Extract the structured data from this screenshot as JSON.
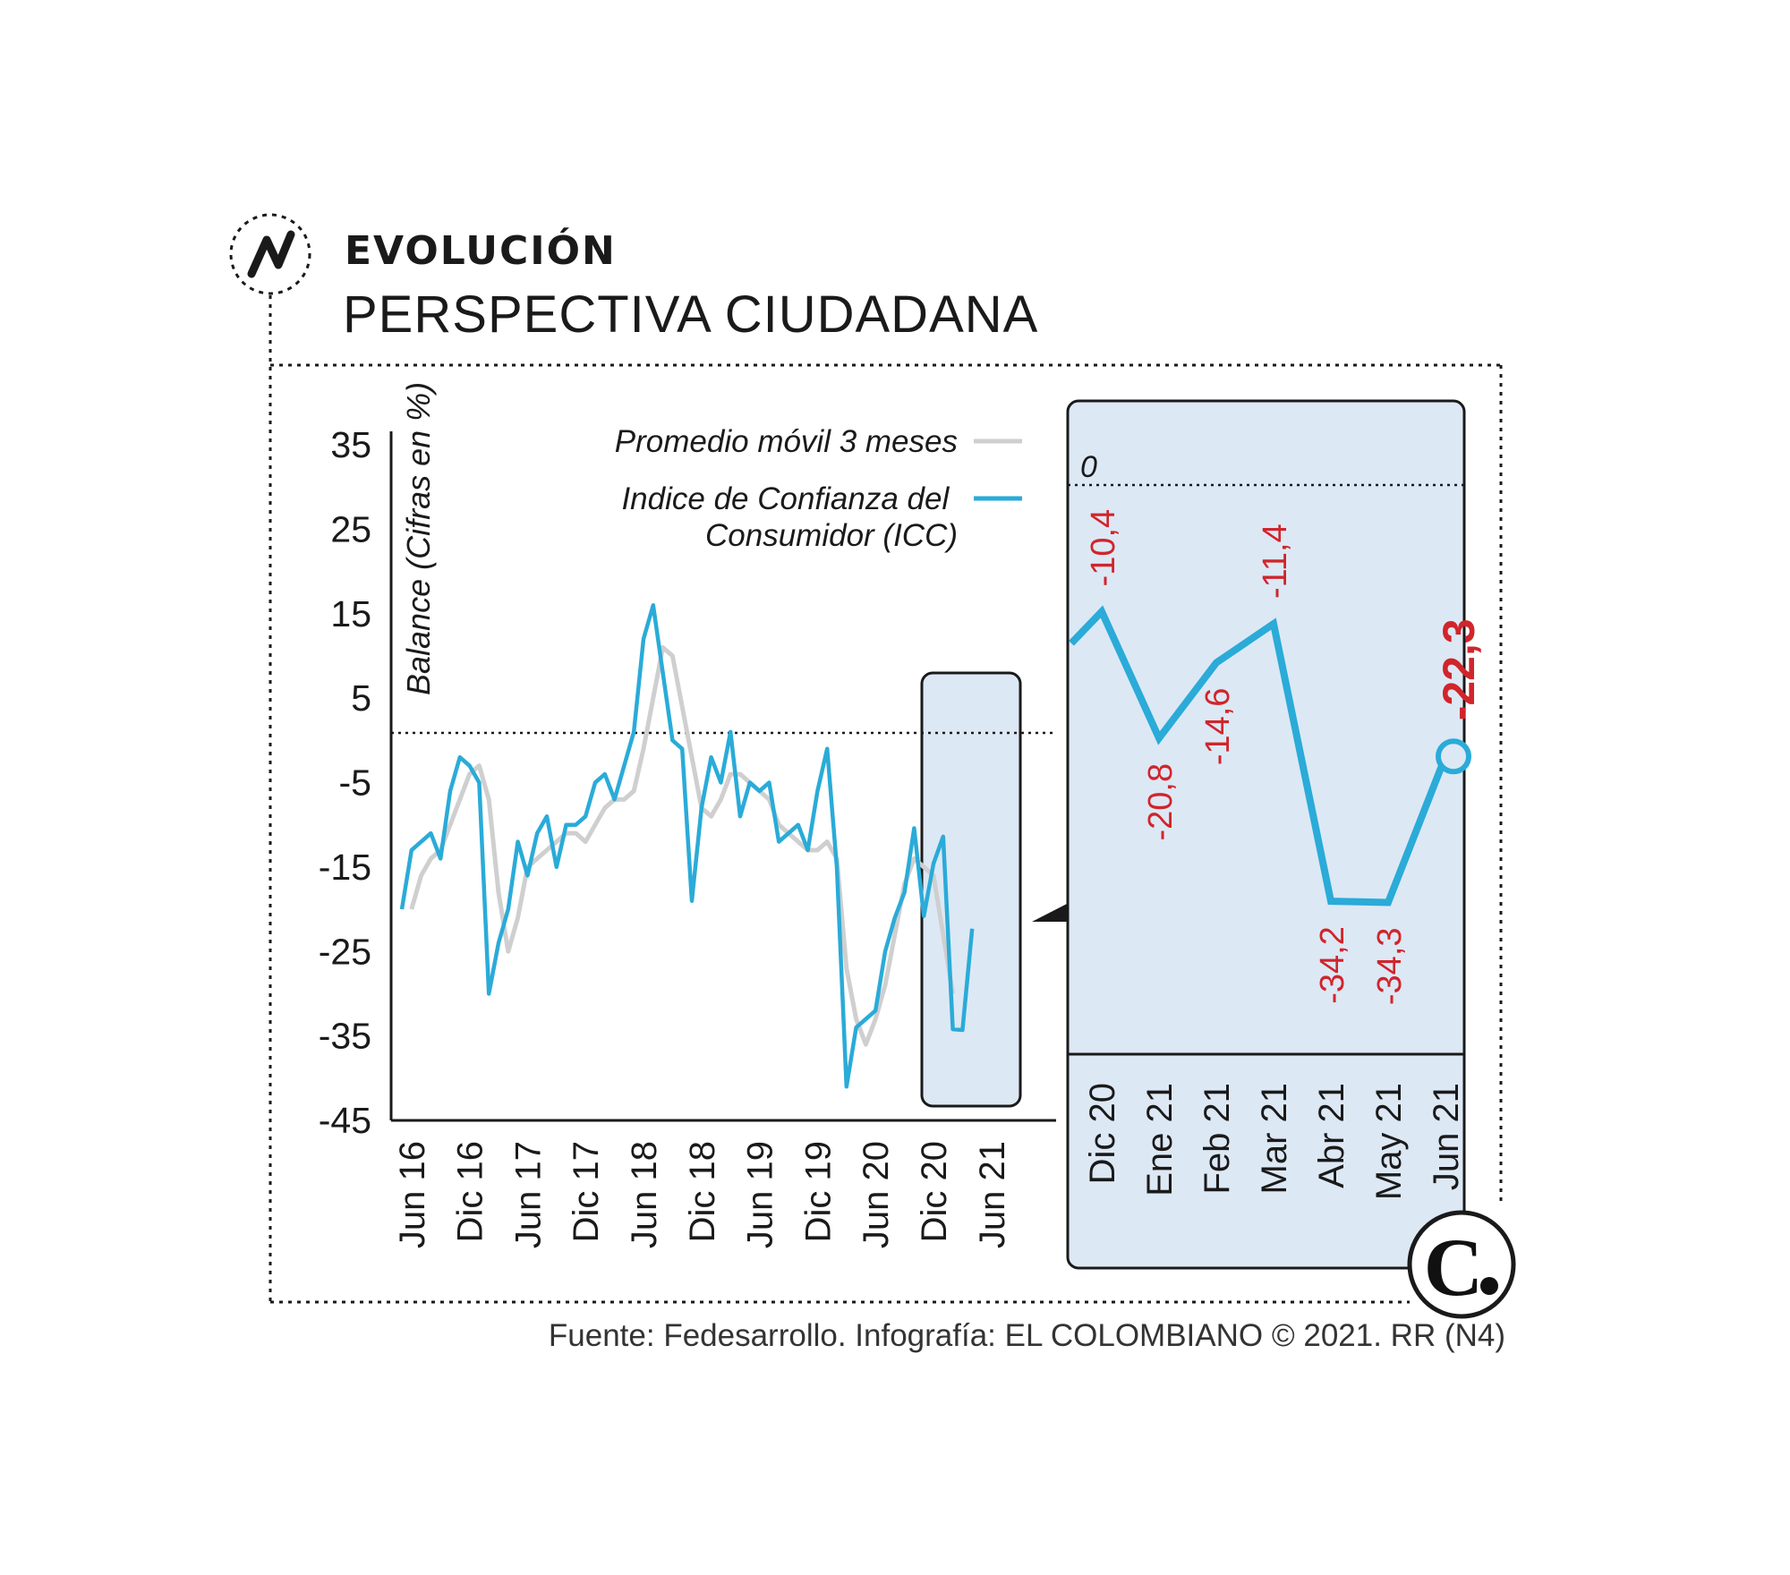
{
  "header": {
    "kicker": "EVOLUCIÓN",
    "title": "PERSPECTIVA CIUDADANA"
  },
  "footer": {
    "source": "Fuente: Fedesarrollo. Infografía: EL COLOMBIANO © 2021. RR (N4)"
  },
  "icons": {
    "section": "trend-line-icon",
    "logo": "el-colombiano-logo"
  },
  "colors": {
    "icc": "#2aabd8",
    "moving_avg": "#cfcfcf",
    "zoom_fill": "#dde8f5",
    "labels": "#d0252b"
  },
  "chart_data": [
    {
      "type": "line",
      "title": "",
      "xlabel": "",
      "ylabel": "Balance (Cifras en %)",
      "ylim": [
        -45,
        35
      ],
      "yticks": [
        "35",
        "25",
        "15",
        "5",
        "-5",
        "-15",
        "-25",
        "-35",
        "-45"
      ],
      "xticks": [
        "Jun 16",
        "Dic 16",
        "Jun 17",
        "Dic 17",
        "Jun 18",
        "Dic 18",
        "Jun 19",
        "Dic 19",
        "Jun 20",
        "Dic 20",
        "Jun 21"
      ],
      "reference_line": 0,
      "legend_position": "top-right",
      "series": [
        {
          "name": "Promedio móvil 3 meses",
          "values": [
            -20,
            -16,
            -14,
            -13,
            -10,
            -7,
            -4,
            -3,
            -7,
            -18,
            -25,
            -21,
            -15,
            -14,
            -13,
            -12,
            -11,
            -11,
            -12,
            -10,
            -8,
            -7,
            -7,
            -6,
            -1,
            5,
            11,
            10,
            4,
            -2,
            -8,
            -9,
            -7,
            -4,
            -4,
            -5,
            -6,
            -7,
            -10,
            -11,
            -12,
            -13,
            -13,
            -12,
            -14,
            -27,
            -33,
            -36,
            -33,
            -29,
            -23,
            -17,
            -14,
            -15,
            -16,
            -23,
            -30
          ]
        },
        {
          "name": "Indice de Confianza del Consumidor (ICC)",
          "values": [
            -20,
            -13,
            -12,
            -11,
            -14,
            -6,
            -2,
            -3,
            -5,
            -30,
            -24,
            -20,
            -12,
            -16,
            -11,
            -9,
            -15,
            -10,
            -10,
            -9,
            -5,
            -4,
            -7,
            -3,
            1,
            12,
            16,
            8,
            0,
            -1,
            -19,
            -8,
            -2,
            -5,
            1,
            -9,
            -5,
            -6,
            -5,
            -12,
            -11,
            -10,
            -13,
            -6,
            -1,
            -15,
            -41,
            -34,
            -33,
            -32,
            -25,
            -21,
            -18,
            -10.4,
            -20.8,
            -14.6,
            -11.4,
            -34.2,
            -34.3,
            -22.3
          ]
        }
      ]
    },
    {
      "type": "line",
      "title": "",
      "categories": [
        "Dic 20",
        "Ene 21",
        "Feb 21",
        "Mar 21",
        "Abr 21",
        "May 21",
        "Jun 21"
      ],
      "reference_line": 0,
      "reference_label": "0",
      "series": [
        {
          "name": "Indice de Confianza del Consumidor (ICC)",
          "values": [
            -10.4,
            -20.8,
            -14.6,
            -11.4,
            -34.2,
            -34.3,
            -22.3
          ],
          "labels": [
            "-10,4",
            "-20,8",
            "-14,6",
            "-11,4",
            "-34,2",
            "-34,3",
            "-22,3"
          ]
        }
      ]
    }
  ]
}
